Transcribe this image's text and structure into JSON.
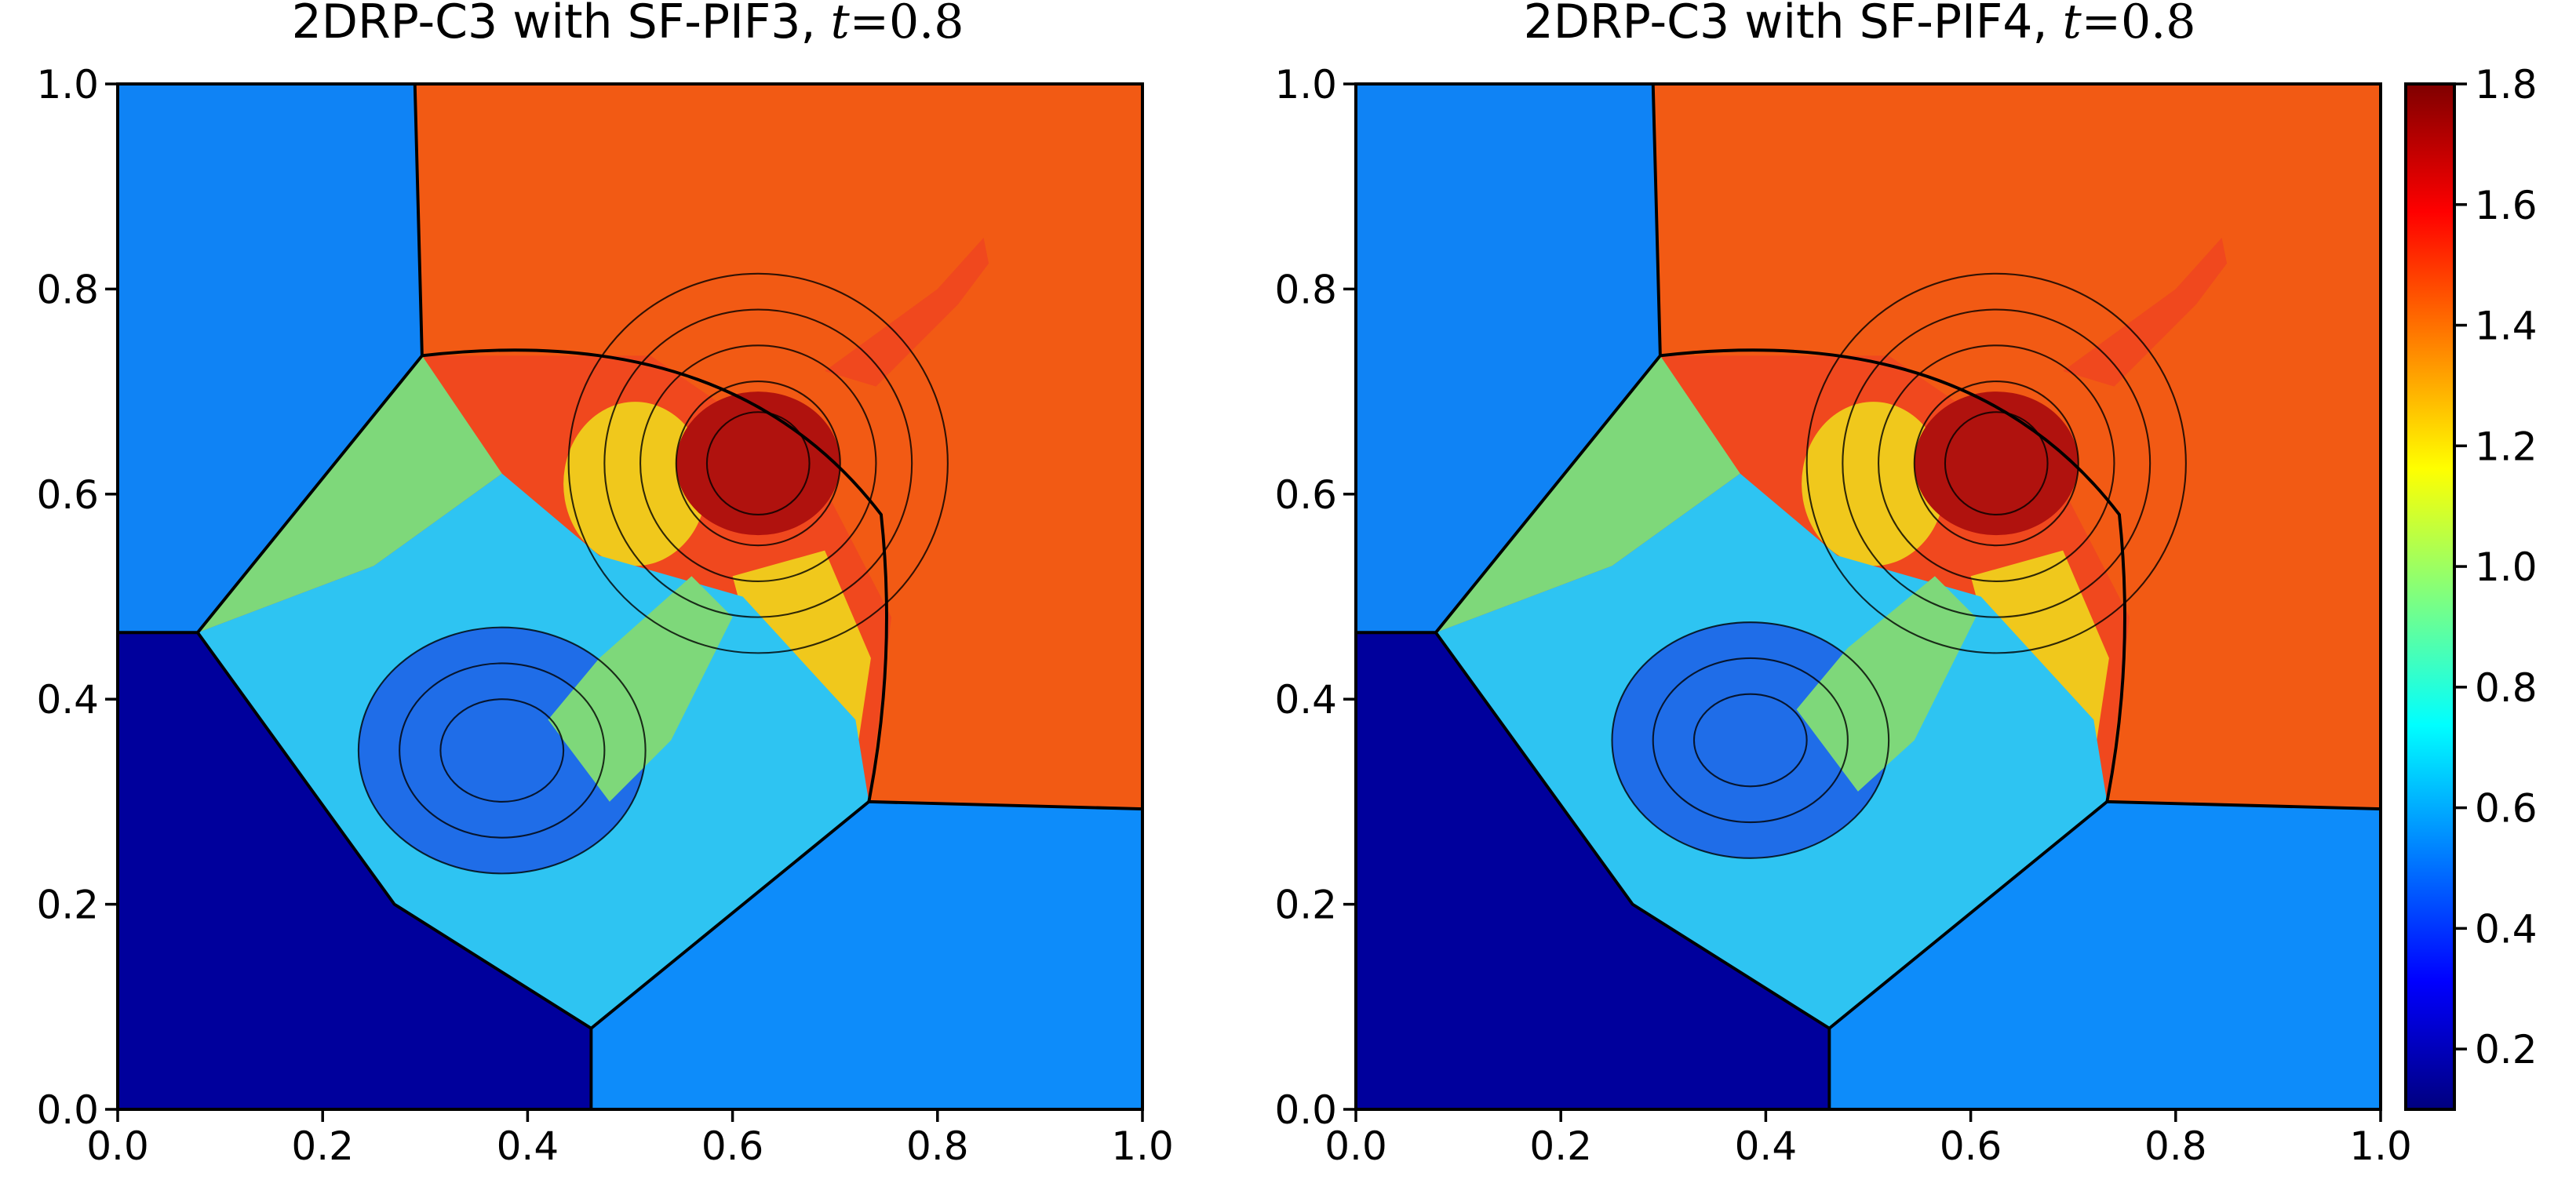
{
  "chart_data": [
    {
      "type": "heatmap",
      "title": {
        "text": "2DRP-C3 with SF-PIF3, ",
        "time_symbol": "t",
        "time_eq": "=0.8"
      },
      "time": 0.8,
      "xlim": [
        0.0,
        1.0
      ],
      "ylim": [
        0.0,
        1.0
      ],
      "x_ticks": [
        "0.0",
        "0.2",
        "0.4",
        "0.6",
        "0.8",
        "1.0"
      ],
      "y_ticks": [
        "0.0",
        "0.2",
        "0.4",
        "0.6",
        "0.8",
        "1.0"
      ],
      "colormap": "jet",
      "contour_lines": true
    },
    {
      "type": "heatmap",
      "title": {
        "text": "2DRP-C3 with SF-PIF4, ",
        "time_symbol": "t",
        "time_eq": "=0.8"
      },
      "time": 0.8,
      "xlim": [
        0.0,
        1.0
      ],
      "ylim": [
        0.0,
        1.0
      ],
      "x_ticks": [
        "0.0",
        "0.2",
        "0.4",
        "0.6",
        "0.8",
        "1.0"
      ],
      "y_ticks": [
        "0.0",
        "0.2",
        "0.4",
        "0.6",
        "0.8",
        "1.0"
      ],
      "colormap": "jet",
      "contour_lines": true
    }
  ],
  "colorbar": {
    "min": 0.1,
    "max": 1.8,
    "ticks": [
      "0.2",
      "0.4",
      "0.6",
      "0.8",
      "1.0",
      "1.2",
      "1.4",
      "1.6",
      "1.8"
    ],
    "colors": [
      "#00007f",
      "#0000ff",
      "#007fff",
      "#00ffff",
      "#7fff7f",
      "#ffff00",
      "#ff7f00",
      "#ff0000",
      "#7f0000"
    ]
  },
  "region_colors": {
    "upper_right_high": "#f25a14",
    "upper_left": "#0f83f5",
    "lower_left_low": "#00009c",
    "lower_right": "#0d8cfa",
    "central_cyan": "#2ec4f2",
    "wedge_green": "#7ed87a",
    "ring_red": "#f0481e",
    "peak_dark_red": "#b0120e",
    "yellow_band": "#f0c81c",
    "blue_core": "#1f6de8"
  }
}
